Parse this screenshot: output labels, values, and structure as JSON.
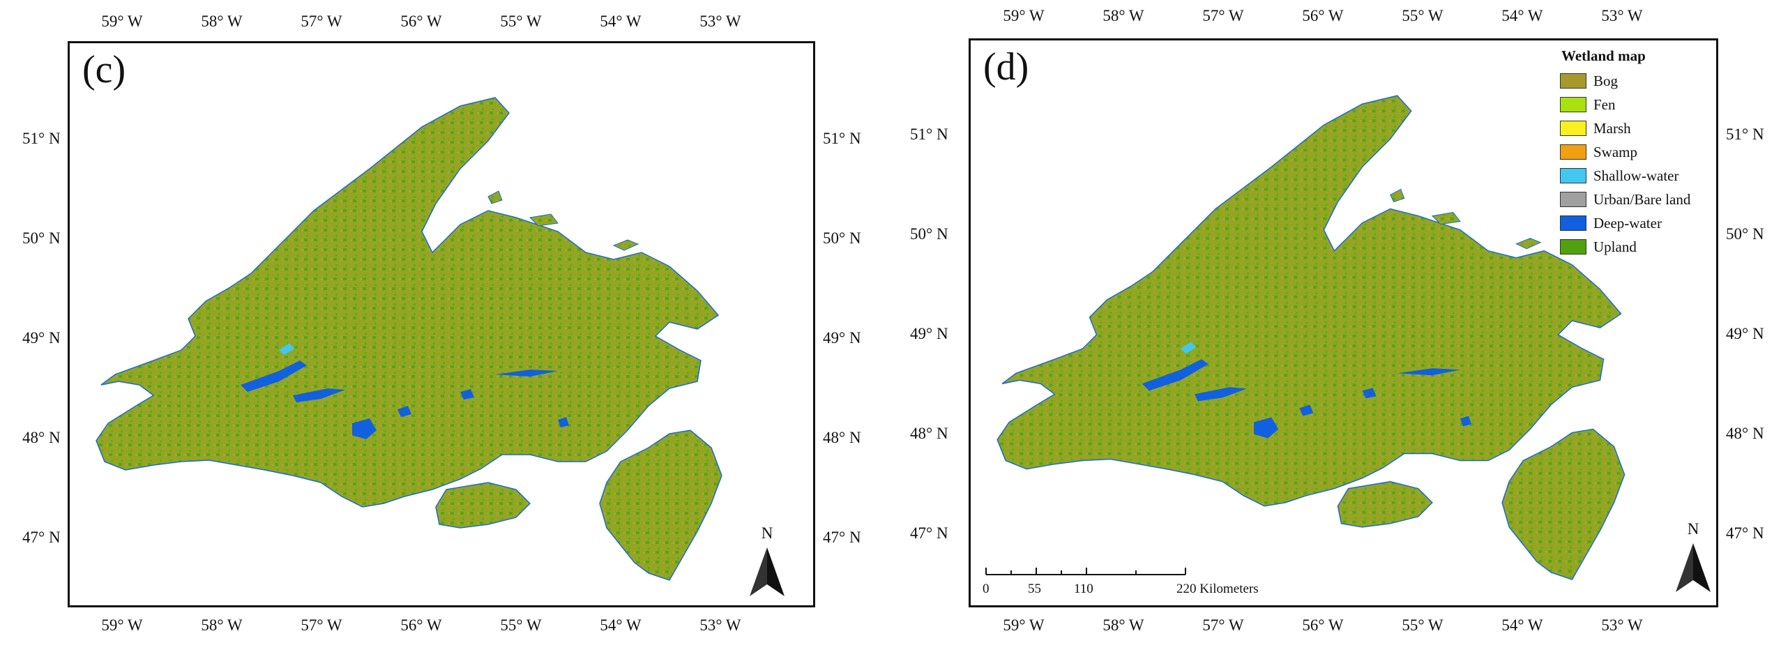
{
  "panels": [
    {
      "label": "(c)",
      "lon_top": [
        "59° W",
        "58° W",
        "57° W",
        "56° W",
        "55° W",
        "54° W",
        "53° W"
      ],
      "lon_bottom": [
        "59° W",
        "58° W",
        "57° W",
        "56° W",
        "55° W",
        "54° W",
        "53° W"
      ],
      "lat_left": [
        "51° N",
        "50° N",
        "49° N",
        "48° N",
        "47° N"
      ],
      "lat_right": [
        "51° N",
        "50° N",
        "49° N",
        "48° N",
        "47° N"
      ],
      "north_label": "N"
    },
    {
      "label": "(d)",
      "lon_top": [
        "59° W",
        "58° W",
        "57° W",
        "56° W",
        "55° W",
        "54° W",
        "53° W"
      ],
      "lon_bottom": [
        "59° W",
        "58° W",
        "57° W",
        "56° W",
        "55° W",
        "54° W",
        "53° W"
      ],
      "lat_left": [
        "51° N",
        "50° N",
        "49° N",
        "48° N",
        "47° N"
      ],
      "lat_right": [
        "51° N",
        "50° N",
        "49° N",
        "48° N",
        "47° N"
      ],
      "north_label": "N"
    }
  ],
  "legend": {
    "title": "Wetland map",
    "items": [
      {
        "label": "Bog",
        "color": "#a89a2a"
      },
      {
        "label": "Fen",
        "color": "#a8e010"
      },
      {
        "label": "Marsh",
        "color": "#f8f020"
      },
      {
        "label": "Swamp",
        "color": "#f0a010"
      },
      {
        "label": "Shallow-water",
        "color": "#40c8f0"
      },
      {
        "label": "Urban/Bare land",
        "color": "#a0a0a0"
      },
      {
        "label": "Deep-water",
        "color": "#1060e0"
      },
      {
        "label": "Upland",
        "color": "#50a010"
      }
    ]
  },
  "scalebar": {
    "labels": [
      "0",
      "55",
      "110",
      "220 Kilometers"
    ]
  },
  "colors": {
    "land_base": "#8fa821",
    "land_green": "#5fa01a",
    "land_olive": "#a89a2a",
    "deep_water": "#1060e0",
    "shallow_water": "#40c8f0",
    "urban": "#a0a0a0"
  }
}
